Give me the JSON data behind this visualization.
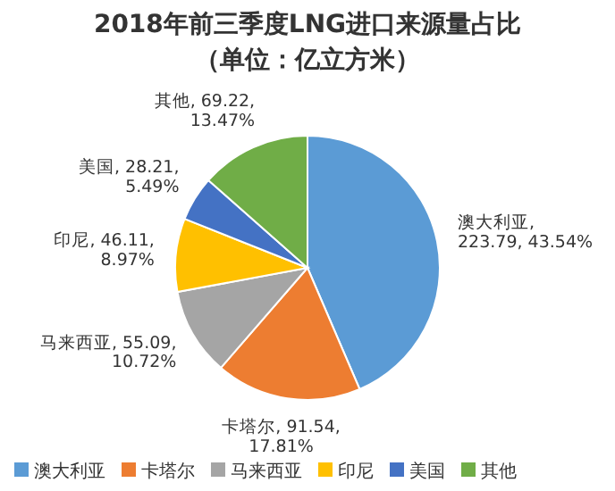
{
  "chart_data": {
    "type": "pie",
    "title": "2018年前三季度LNG进口来源量占比",
    "subtitle": "（单位：亿立方米）",
    "categories": [
      "澳大利亚",
      "卡塔尔",
      "马来西亚",
      "印尼",
      "美国",
      "其他"
    ],
    "values": [
      223.79,
      91.54,
      55.09,
      46.11,
      28.21,
      69.22
    ],
    "colors": [
      "#5b9bd5",
      "#ed7d31",
      "#a5a5a5",
      "#ffc000",
      "#4472c4",
      "#70ad47"
    ],
    "value_labels": [
      "澳大利亚,\n223.79, 43.54%",
      "卡塔尔, 91.54,\n17.81%",
      "马来西亚, 55.09,\n10.72%",
      "印尼, 46.11,\n8.97%",
      "美国, 28.21,\n5.49%",
      "其他, 69.22,\n13.47%"
    ],
    "legend": "bottom"
  }
}
